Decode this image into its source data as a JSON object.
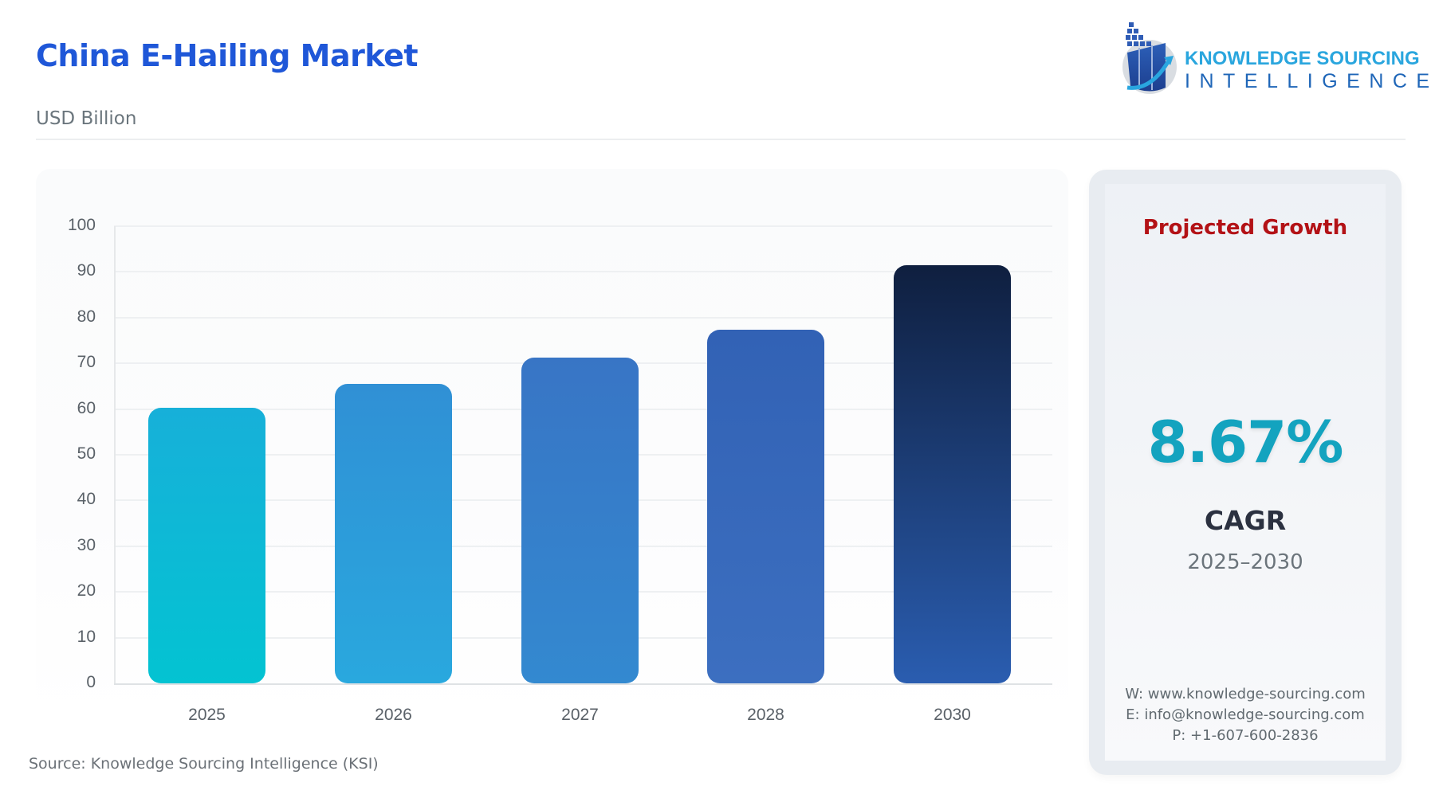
{
  "header": {
    "title": "China E-Hailing Market",
    "subtitle": "USD Billion"
  },
  "logo": {
    "line1": "KNOWLEDGE SOURCING",
    "line2": "INTELLIGENCE",
    "icon": "bar-chart-arrow-logo-icon"
  },
  "chart_data": {
    "type": "bar",
    "title": "China E-Hailing Market",
    "subtitle": "USD Billion",
    "xlabel": "",
    "ylabel": "USD Billion",
    "categories": [
      "2025",
      "2026",
      "2027",
      "2028",
      "2030"
    ],
    "values": [
      60.3,
      65.5,
      71.2,
      77.4,
      91.4
    ],
    "ylim": [
      0,
      100
    ],
    "yticks": [
      "0",
      "10",
      "20",
      "30",
      "40",
      "50",
      "60",
      "70",
      "80",
      "90",
      "100"
    ],
    "grid": true,
    "legend": "none",
    "bar_colors": [
      {
        "top": "#17b0d9",
        "bottom": "#03c3d2"
      },
      {
        "top": "#3090d5",
        "bottom": "#29a8de"
      },
      {
        "top": "#3875c5",
        "bottom": "#3389d0"
      },
      {
        "top": "#3262b5",
        "bottom": "#3c6fc0"
      },
      {
        "top": "#0f1f3f",
        "bottom": "#2a5db0"
      }
    ]
  },
  "source": "Source: Knowledge Sourcing Intelligence (KSI)",
  "growth_panel": {
    "heading": "Projected Growth",
    "value": "8.67%",
    "label": "CAGR",
    "period": "2025–2030",
    "contact": {
      "web": "W: www.knowledge-sourcing.com",
      "email": "E: info@knowledge-sourcing.com",
      "phone": "P: +1-607-600-2836"
    }
  },
  "colors": {
    "title": "#1f57d8",
    "heading_red": "#b31216",
    "cagr_teal": "#13a3bf"
  }
}
